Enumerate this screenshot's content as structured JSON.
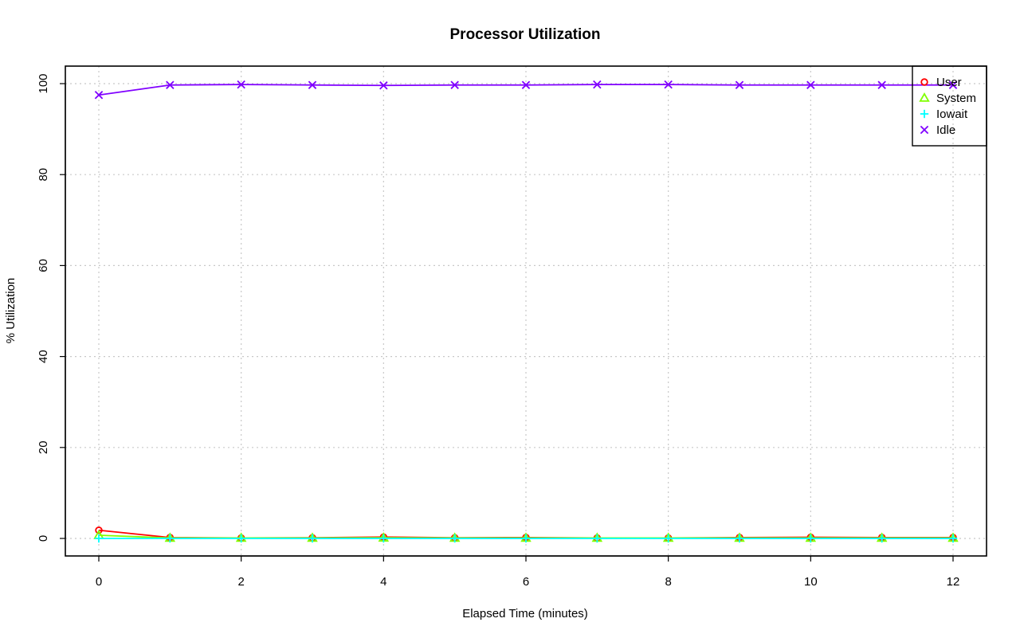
{
  "chart_data": {
    "type": "line",
    "title": "Processor Utilization",
    "xlabel": "Elapsed Time (minutes)",
    "ylabel": "% Utilization",
    "xlim": [
      0,
      12
    ],
    "ylim": [
      0,
      100
    ],
    "x_ticks": [
      0,
      2,
      4,
      6,
      8,
      10,
      12
    ],
    "y_ticks": [
      0,
      20,
      40,
      60,
      80,
      100
    ],
    "x_tick_labels": [
      "0",
      "2",
      "4",
      "6",
      "8",
      "10",
      "12"
    ],
    "y_tick_labels": [
      "0",
      "20",
      "40",
      "60",
      "80",
      "100"
    ],
    "grid": true,
    "legend_position": "top-right",
    "x": [
      0,
      1,
      2,
      3,
      4,
      5,
      6,
      7,
      8,
      9,
      10,
      11,
      12
    ],
    "series": [
      {
        "name": "User",
        "color": "#ff0000",
        "marker": "circle",
        "values": [
          1.8,
          0.2,
          0.1,
          0.15,
          0.3,
          0.15,
          0.2,
          0.1,
          0.1,
          0.2,
          0.25,
          0.2,
          0.2
        ]
      },
      {
        "name": "System",
        "color": "#80ff00",
        "marker": "triangle",
        "values": [
          0.7,
          0.1,
          0.1,
          0.1,
          0.15,
          0.1,
          0.1,
          0.1,
          0.1,
          0.1,
          0.1,
          0.1,
          0.1
        ]
      },
      {
        "name": "Iowait",
        "color": "#00ffff",
        "marker": "plus",
        "values": [
          0.0,
          0.0,
          0.0,
          0.0,
          0.0,
          0.0,
          0.0,
          0.0,
          0.0,
          0.0,
          0.0,
          0.0,
          0.0
        ]
      },
      {
        "name": "Idle",
        "color": "#8000ff",
        "marker": "cross",
        "values": [
          97.5,
          99.7,
          99.8,
          99.7,
          99.6,
          99.7,
          99.7,
          99.8,
          99.8,
          99.7,
          99.7,
          99.7,
          99.7
        ]
      }
    ]
  }
}
